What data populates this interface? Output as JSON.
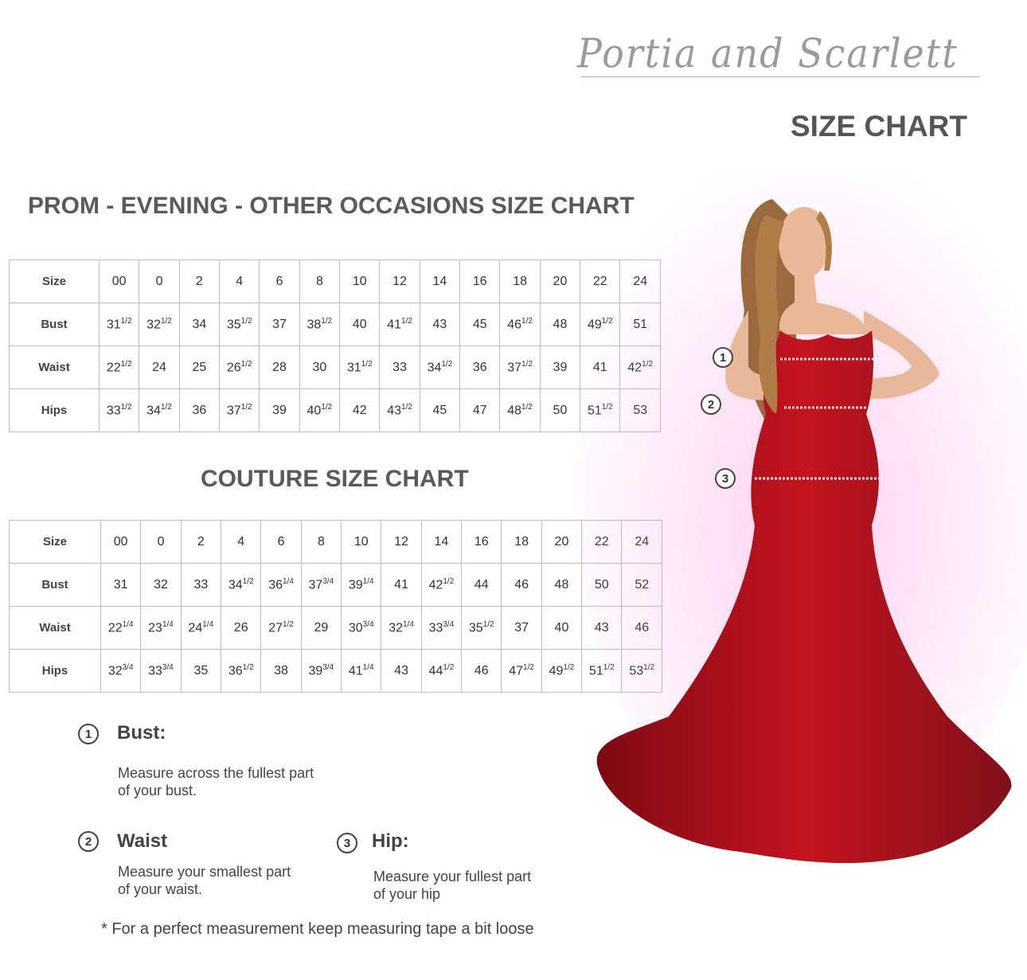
{
  "brand": {
    "logo_text": "Portia and Scarlett",
    "heading": "SIZE CHART"
  },
  "prom_chart": {
    "title": "PROM - EVENING - OTHER OCCASIONS SIZE CHART",
    "header_label": "Size",
    "sizes": [
      "00",
      "0",
      "2",
      "4",
      "6",
      "8",
      "10",
      "12",
      "14",
      "16",
      "18",
      "20",
      "22",
      "24"
    ],
    "rows": [
      {
        "label": "Bust",
        "values": [
          [
            "31",
            "1/2"
          ],
          [
            "32",
            "1/2"
          ],
          [
            "34",
            ""
          ],
          [
            "35",
            "1/2"
          ],
          [
            "37",
            ""
          ],
          [
            "38",
            "1/2"
          ],
          [
            "40",
            ""
          ],
          [
            "41",
            "1/2"
          ],
          [
            "43",
            ""
          ],
          [
            "45",
            ""
          ],
          [
            "46",
            "1/2"
          ],
          [
            "48",
            ""
          ],
          [
            "49",
            "1/2"
          ],
          [
            "51",
            ""
          ]
        ]
      },
      {
        "label": "Waist",
        "values": [
          [
            "22",
            "1/2"
          ],
          [
            "24",
            ""
          ],
          [
            "25",
            ""
          ],
          [
            "26",
            "1/2"
          ],
          [
            "28",
            ""
          ],
          [
            "30",
            ""
          ],
          [
            "31",
            "1/2"
          ],
          [
            "33",
            ""
          ],
          [
            "34",
            "1/2"
          ],
          [
            "36",
            ""
          ],
          [
            "37",
            "1/2"
          ],
          [
            "39",
            ""
          ],
          [
            "41",
            ""
          ],
          [
            "42",
            "1/2"
          ]
        ]
      },
      {
        "label": "Hips",
        "values": [
          [
            "33",
            "1/2"
          ],
          [
            "34",
            "1/2"
          ],
          [
            "36",
            ""
          ],
          [
            "37",
            "1/2"
          ],
          [
            "39",
            ""
          ],
          [
            "40",
            "1/2"
          ],
          [
            "42",
            ""
          ],
          [
            "43",
            "1/2"
          ],
          [
            "45",
            ""
          ],
          [
            "47",
            ""
          ],
          [
            "48",
            "1/2"
          ],
          [
            "50",
            ""
          ],
          [
            "51",
            "1/2"
          ],
          [
            "53",
            ""
          ]
        ]
      }
    ]
  },
  "couture_chart": {
    "title": "COUTURE SIZE CHART",
    "header_label": "Size",
    "sizes": [
      "00",
      "0",
      "2",
      "4",
      "6",
      "8",
      "10",
      "12",
      "14",
      "16",
      "18",
      "20",
      "22",
      "24"
    ],
    "rows": [
      {
        "label": "Bust",
        "values": [
          [
            "31",
            ""
          ],
          [
            "32",
            ""
          ],
          [
            "33",
            ""
          ],
          [
            "34",
            "1/2"
          ],
          [
            "36",
            "1/4"
          ],
          [
            "37",
            "3/4"
          ],
          [
            "39",
            "1/4"
          ],
          [
            "41",
            ""
          ],
          [
            "42",
            "1/2"
          ],
          [
            "44",
            ""
          ],
          [
            "46",
            ""
          ],
          [
            "48",
            ""
          ],
          [
            "50",
            ""
          ],
          [
            "52",
            ""
          ]
        ]
      },
      {
        "label": "Waist",
        "values": [
          [
            "22",
            "1/4"
          ],
          [
            "23",
            "1/4"
          ],
          [
            "24",
            "1/4"
          ],
          [
            "26",
            ""
          ],
          [
            "27",
            "1/2"
          ],
          [
            "29",
            ""
          ],
          [
            "30",
            "3/4"
          ],
          [
            "32",
            "1/4"
          ],
          [
            "33",
            "3/4"
          ],
          [
            "35",
            "1/2"
          ],
          [
            "37",
            ""
          ],
          [
            "40",
            ""
          ],
          [
            "43",
            ""
          ],
          [
            "46",
            ""
          ]
        ]
      },
      {
        "label": "Hips",
        "values": [
          [
            "32",
            "3/4"
          ],
          [
            "33",
            "3/4"
          ],
          [
            "35",
            ""
          ],
          [
            "36",
            "1/2"
          ],
          [
            "38",
            ""
          ],
          [
            "39",
            "3/4"
          ],
          [
            "41",
            "1/4"
          ],
          [
            "43",
            ""
          ],
          [
            "44",
            "1/2"
          ],
          [
            "46",
            ""
          ],
          [
            "47",
            "1/2"
          ],
          [
            "49",
            "1/2"
          ],
          [
            "51",
            "1/2"
          ],
          [
            "53",
            "1/2"
          ]
        ]
      }
    ]
  },
  "measurements": [
    {
      "number": "1",
      "label": "Bust:",
      "description": "Measure across the fullest part of your bust."
    },
    {
      "number": "2",
      "label": "Waist",
      "description": "Measure your smallest part of your waist."
    },
    {
      "number": "3",
      "label": "Hip:",
      "description": "Measure your fullest part of your hip"
    }
  ],
  "figure_markers": [
    "1",
    "2",
    "3"
  ],
  "footnote": "* For a perfect measurement keep measuring tape a bit loose",
  "colors": {
    "dress": "#b0101c",
    "text": "#555555",
    "border": "#bdbdbd"
  }
}
